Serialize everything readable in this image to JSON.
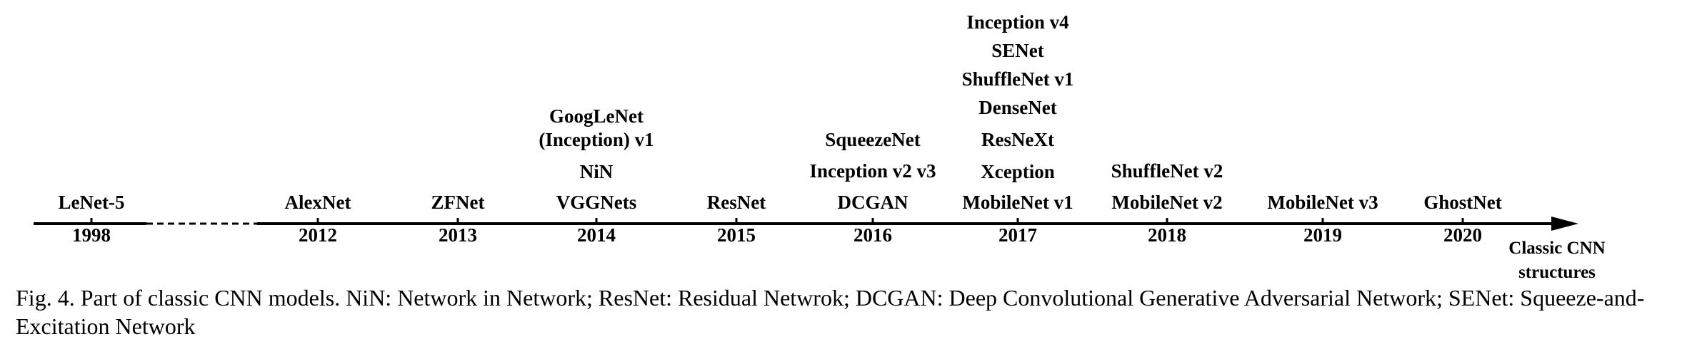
{
  "timeline": {
    "axis_label_lines": [
      "Classic CNN",
      "structures"
    ],
    "entries": [
      {
        "year": "1998",
        "models": [
          "LeNet-5"
        ]
      },
      {
        "year": "2012",
        "models": [
          "AlexNet"
        ]
      },
      {
        "year": "2013",
        "models": [
          "ZFNet"
        ]
      },
      {
        "year": "2014",
        "models": [
          "GoogLeNet",
          "(Inception) v1",
          "NiN",
          "VGGNets"
        ]
      },
      {
        "year": "2015",
        "models": [
          "ResNet"
        ]
      },
      {
        "year": "2016",
        "models": [
          "SqueezeNet",
          "Inception v2 v3",
          "DCGAN"
        ]
      },
      {
        "year": "2017",
        "models": [
          "Inception v4",
          "SENet",
          "ShuffleNet v1",
          "DenseNet",
          "ResNeXt",
          "Xception",
          "MobileNet v1"
        ]
      },
      {
        "year": "2018",
        "models": [
          "ShuffleNet v2",
          "MobileNet v2"
        ]
      },
      {
        "year": "2019",
        "models": [
          "MobileNet v3"
        ]
      },
      {
        "year": "2020",
        "models": [
          "GhostNet"
        ]
      }
    ],
    "gap_after": "1998"
  },
  "caption": "Fig. 4.  Part of classic CNN models. NiN: Network in Network; ResNet: Residual Netwrok; DCGAN: Deep Convolutional Generative Adversarial Network; SENet: Squeeze-and-Excitation Network"
}
